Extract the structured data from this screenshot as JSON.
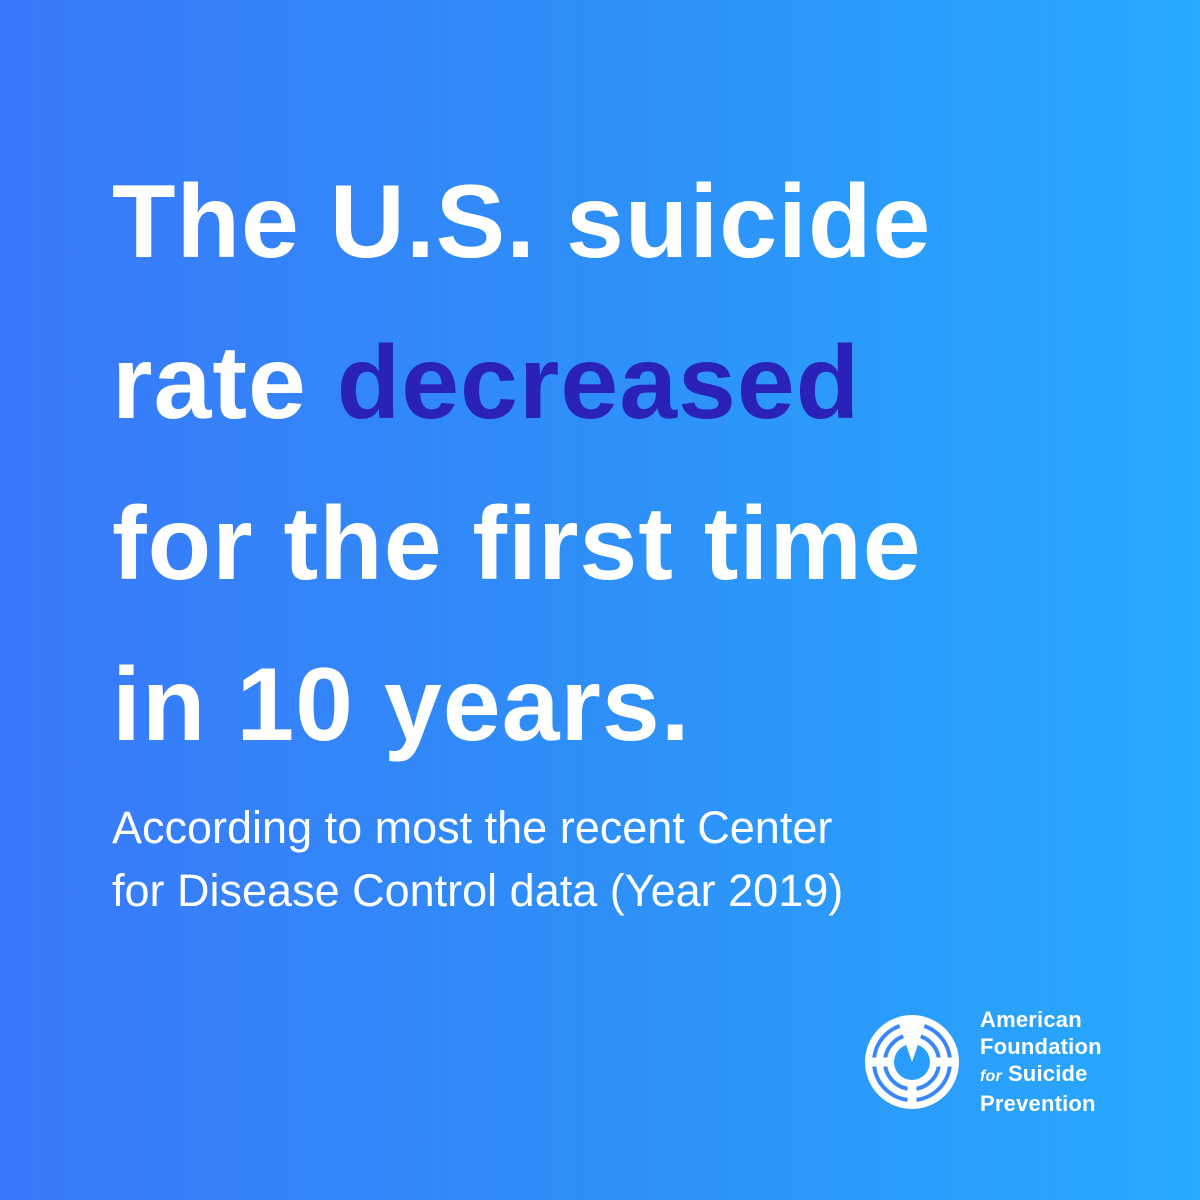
{
  "headline": {
    "line1": "The U.S. suicide",
    "line2_prefix": "rate ",
    "line2_accent": "decreased",
    "line3": "for the first time",
    "line4": "in 10 years."
  },
  "subtext": {
    "line1": "According to most the recent Center",
    "line2": "for Disease Control data (Year 2019)"
  },
  "logo": {
    "icon": "life-ring-icon",
    "line1": "American",
    "line2": "Foundation",
    "line3_for": "for",
    "line3_rest": "Suicide",
    "line4": "Prevention"
  },
  "colors": {
    "background_start": "#3a78fb",
    "background_end": "#27aaff",
    "accent": "#2a22b8",
    "text": "#ffffff"
  }
}
